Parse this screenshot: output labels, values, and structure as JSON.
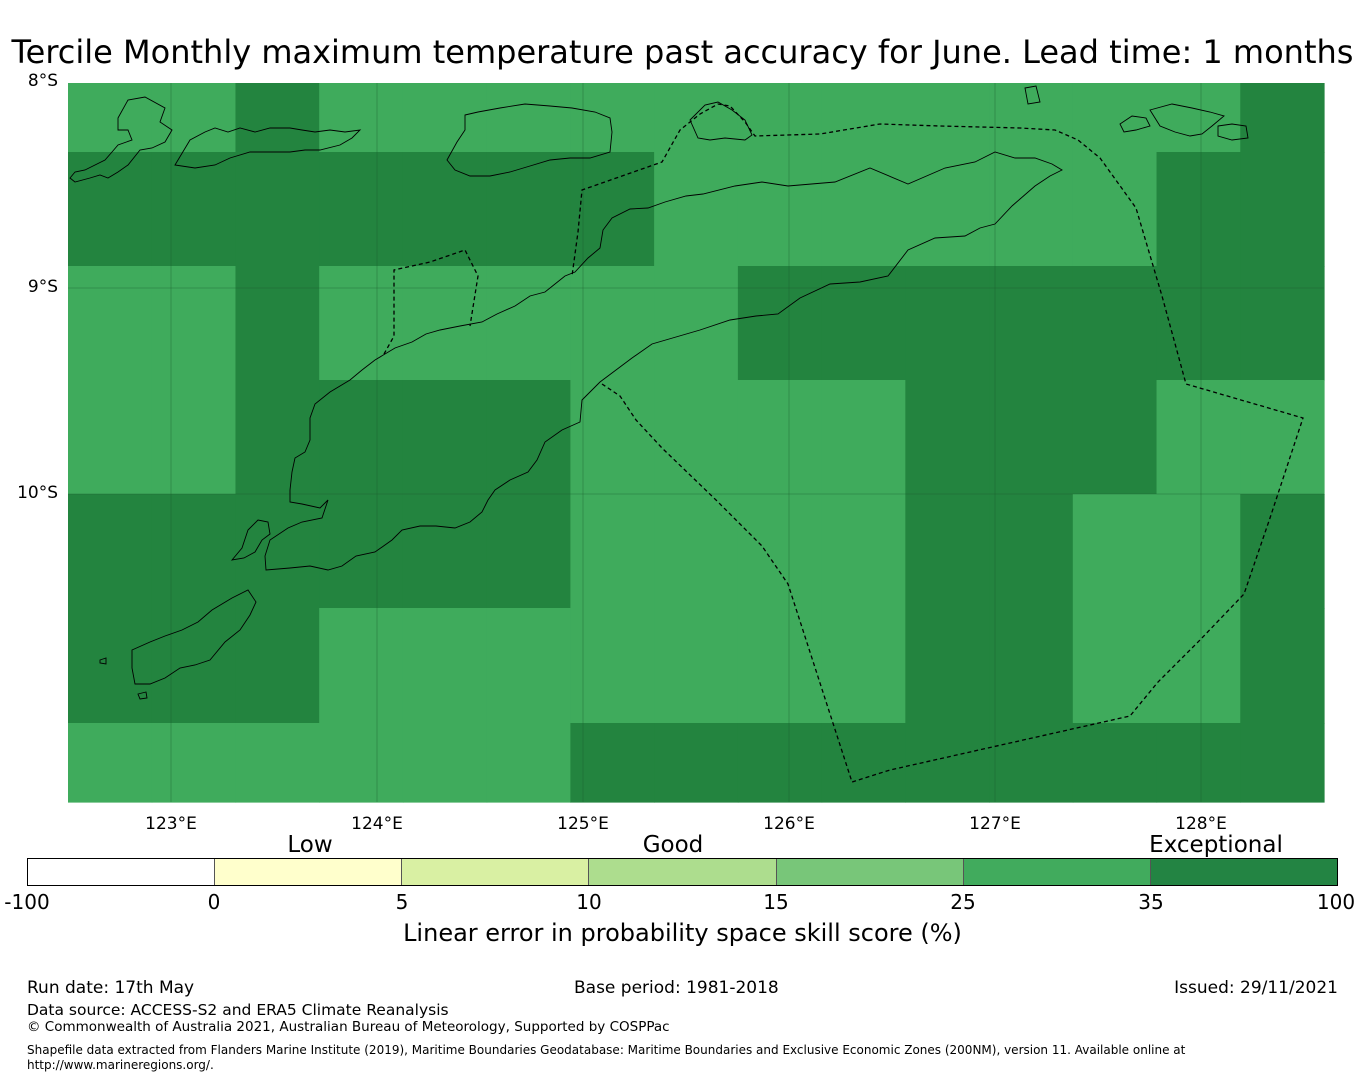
{
  "title": "Tercile Monthly maximum temperature past accuracy for June. Lead time: 1 months",
  "map": {
    "lat_labels": [
      "8°S",
      "9°S",
      "10°S"
    ],
    "lon_labels": [
      "123°E",
      "124°E",
      "125°E",
      "126°E",
      "127°E",
      "128°E"
    ],
    "lon_range": [
      122.5,
      128.6
    ],
    "lat_range": [
      -11.5,
      -8.0
    ],
    "cell_colors": {
      "exceptional": "#23843f",
      "good": "#3fab5c"
    },
    "skill_grid_rows_north_to_south": [
      [
        "good",
        "good",
        "exceptional",
        "good",
        "good",
        "good",
        "good",
        "good",
        "good",
        "good",
        "good",
        "good",
        "good",
        "good",
        "exceptional"
      ],
      [
        "exceptional",
        "exceptional",
        "exceptional",
        "exceptional",
        "exceptional",
        "exceptional",
        "exceptional",
        "good",
        "good",
        "good",
        "good",
        "good",
        "good",
        "exceptional",
        "exceptional"
      ],
      [
        "good",
        "good",
        "exceptional",
        "good",
        "good",
        "good",
        "good",
        "good",
        "exceptional",
        "exceptional",
        "exceptional",
        "exceptional",
        "exceptional",
        "exceptional",
        "exceptional"
      ],
      [
        "good",
        "good",
        "exceptional",
        "exceptional",
        "exceptional",
        "exceptional",
        "good",
        "good",
        "good",
        "good",
        "exceptional",
        "exceptional",
        "exceptional",
        "good",
        "good"
      ],
      [
        "exceptional",
        "exceptional",
        "exceptional",
        "exceptional",
        "exceptional",
        "exceptional",
        "good",
        "good",
        "good",
        "good",
        "exceptional",
        "exceptional",
        "good",
        "good",
        "exceptional"
      ],
      [
        "exceptional",
        "exceptional",
        "exceptional",
        "good",
        "good",
        "good",
        "good",
        "good",
        "good",
        "good",
        "exceptional",
        "exceptional",
        "good",
        "good",
        "exceptional"
      ],
      [
        "good",
        "good",
        "good",
        "good",
        "good",
        "good",
        "exceptional",
        "exceptional",
        "exceptional",
        "exceptional",
        "exceptional",
        "exceptional",
        "exceptional",
        "exceptional",
        "exceptional"
      ]
    ]
  },
  "colorbar": {
    "categories": [
      "Low",
      "Good",
      "Exceptional"
    ],
    "ticks": [
      "-100",
      "0",
      "5",
      "10",
      "15",
      "25",
      "35",
      "100"
    ],
    "colors": [
      "#ffffff",
      "#ffffcc",
      "#d9f0a3",
      "#addd8e",
      "#78c679",
      "#41ab5d",
      "#238443"
    ],
    "label": "Linear error in probability space skill score (%)"
  },
  "footer": {
    "run_date": "Run date: 17th May",
    "base_period": "Base period: 1981-2018",
    "issued": "Issued: 29/11/2021",
    "data_source": "Data source: ACCESS-S2 and ERA5 Climate Reanalysis",
    "copyright": "© Commonwealth of Australia 2021, Australian Bureau of Meteorology, Supported by COSPPac",
    "shapefile_line1": "Shapefile data extracted from Flanders Marine Institute (2019), Maritime Boundaries Geodatabase: Maritime Boundaries and Exclusive Economic Zones (200NM), version 11. Available online at",
    "shapefile_line2": "http://www.marineregions.org/."
  }
}
